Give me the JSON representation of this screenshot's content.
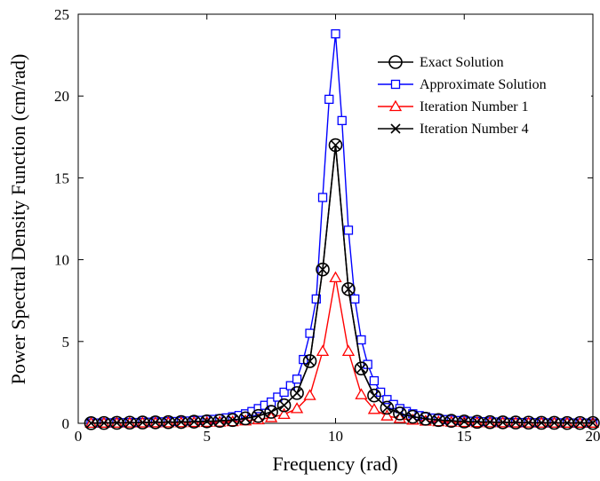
{
  "chart_data": {
    "type": "line",
    "title": "",
    "xlabel": "Frequency (rad)",
    "ylabel": "Power Spectral Density Function (cm/rad)",
    "xlim": [
      0,
      20
    ],
    "ylim": [
      0,
      25
    ],
    "xticks": [
      0,
      5,
      10,
      15,
      20
    ],
    "yticks": [
      0,
      5,
      10,
      15,
      20,
      25
    ],
    "grid": false,
    "legend_position": "top-right",
    "series": [
      {
        "name": "Exact Solution",
        "color": "#000000",
        "marker": "circle",
        "x": [
          0.5,
          1,
          1.5,
          2,
          2.5,
          3,
          3.5,
          4,
          4.5,
          5,
          5.5,
          6,
          6.5,
          7,
          7.5,
          8,
          8.5,
          9,
          9.5,
          10,
          10.5,
          11,
          11.5,
          12,
          12.5,
          13,
          13.5,
          14,
          14.5,
          15,
          15.5,
          16,
          16.5,
          17,
          17.5,
          18,
          18.5,
          19,
          19.5,
          20
        ],
        "y": [
          0.01,
          0.02,
          0.03,
          0.04,
          0.05,
          0.06,
          0.07,
          0.08,
          0.1,
          0.12,
          0.15,
          0.2,
          0.3,
          0.45,
          0.7,
          1.1,
          1.85,
          3.8,
          9.4,
          17.0,
          8.2,
          3.35,
          1.7,
          0.95,
          0.6,
          0.4,
          0.28,
          0.2,
          0.15,
          0.11,
          0.09,
          0.07,
          0.06,
          0.05,
          0.04,
          0.03,
          0.03,
          0.02,
          0.02,
          0.02
        ]
      },
      {
        "name": "Approximate Solution",
        "color": "#0000ff",
        "marker": "square",
        "x": [
          0.5,
          0.75,
          1,
          1.25,
          1.5,
          1.75,
          2,
          2.25,
          2.5,
          2.75,
          3,
          3.25,
          3.5,
          3.75,
          4,
          4.25,
          4.5,
          4.75,
          5,
          5.25,
          5.5,
          5.75,
          6,
          6.25,
          6.5,
          6.75,
          7,
          7.25,
          7.5,
          7.75,
          8,
          8.25,
          8.5,
          8.75,
          9,
          9.25,
          9.5,
          9.75,
          10,
          10.25,
          10.5,
          10.75,
          11,
          11.25,
          11.5,
          11.75,
          12,
          12.25,
          12.5,
          12.75,
          13,
          13.25,
          13.5,
          13.75,
          14,
          14.25,
          14.5,
          14.75,
          15,
          15.25,
          15.5,
          15.75,
          16,
          16.25,
          16.5,
          16.75,
          17,
          17.25,
          17.5,
          17.75,
          18,
          18.25,
          18.5,
          18.75,
          19,
          19.25,
          19.5,
          19.75,
          20
        ],
        "y": [
          0.02,
          0.02,
          0.03,
          0.03,
          0.04,
          0.04,
          0.05,
          0.05,
          0.06,
          0.07,
          0.08,
          0.09,
          0.1,
          0.11,
          0.12,
          0.14,
          0.16,
          0.18,
          0.21,
          0.24,
          0.28,
          0.33,
          0.4,
          0.48,
          0.58,
          0.72,
          0.9,
          1.1,
          1.3,
          1.6,
          1.9,
          2.3,
          2.7,
          3.9,
          5.5,
          7.6,
          13.8,
          19.8,
          23.8,
          18.5,
          11.8,
          7.6,
          5.1,
          3.6,
          2.6,
          1.9,
          1.45,
          1.15,
          0.9,
          0.72,
          0.58,
          0.47,
          0.39,
          0.32,
          0.27,
          0.23,
          0.2,
          0.17,
          0.15,
          0.13,
          0.11,
          0.1,
          0.09,
          0.08,
          0.07,
          0.06,
          0.05,
          0.05,
          0.04,
          0.04,
          0.04,
          0.03,
          0.03,
          0.03,
          0.03,
          0.02,
          0.02,
          0.02,
          0.02
        ]
      },
      {
        "name": "Iteration Number 1",
        "color": "#ff0000",
        "marker": "triangle",
        "x": [
          0.5,
          1,
          1.5,
          2,
          2.5,
          3,
          3.5,
          4,
          4.5,
          5,
          5.5,
          6,
          6.5,
          7,
          7.5,
          8,
          8.5,
          9,
          9.5,
          10,
          10.5,
          11,
          11.5,
          12,
          12.5,
          13,
          13.5,
          14,
          14.5,
          15,
          15.5,
          16,
          16.5,
          17,
          17.5,
          18,
          18.5,
          19,
          19.5,
          20
        ],
        "y": [
          0.005,
          0.01,
          0.015,
          0.02,
          0.025,
          0.03,
          0.035,
          0.04,
          0.05,
          0.06,
          0.075,
          0.1,
          0.15,
          0.22,
          0.35,
          0.55,
          0.9,
          1.7,
          4.4,
          8.9,
          4.4,
          1.75,
          0.85,
          0.45,
          0.3,
          0.2,
          0.14,
          0.1,
          0.075,
          0.055,
          0.045,
          0.035,
          0.03,
          0.025,
          0.02,
          0.015,
          0.015,
          0.01,
          0.01,
          0.01
        ]
      },
      {
        "name": "Iteration Number 4",
        "color": "#000000",
        "marker": "x",
        "x": [
          0.5,
          1,
          1.5,
          2,
          2.5,
          3,
          3.5,
          4,
          4.5,
          5,
          5.5,
          6,
          6.5,
          7,
          7.5,
          8,
          8.5,
          9,
          9.5,
          10,
          10.5,
          11,
          11.5,
          12,
          12.5,
          13,
          13.5,
          14,
          14.5,
          15,
          15.5,
          16,
          16.5,
          17,
          17.5,
          18,
          18.5,
          19,
          19.5,
          20
        ],
        "y": [
          0.01,
          0.02,
          0.03,
          0.04,
          0.05,
          0.06,
          0.07,
          0.08,
          0.1,
          0.12,
          0.15,
          0.2,
          0.3,
          0.45,
          0.7,
          1.1,
          1.85,
          3.8,
          9.4,
          17.0,
          8.2,
          3.35,
          1.7,
          0.95,
          0.6,
          0.4,
          0.28,
          0.2,
          0.15,
          0.11,
          0.09,
          0.07,
          0.06,
          0.05,
          0.04,
          0.03,
          0.03,
          0.02,
          0.02,
          0.02
        ]
      }
    ]
  }
}
